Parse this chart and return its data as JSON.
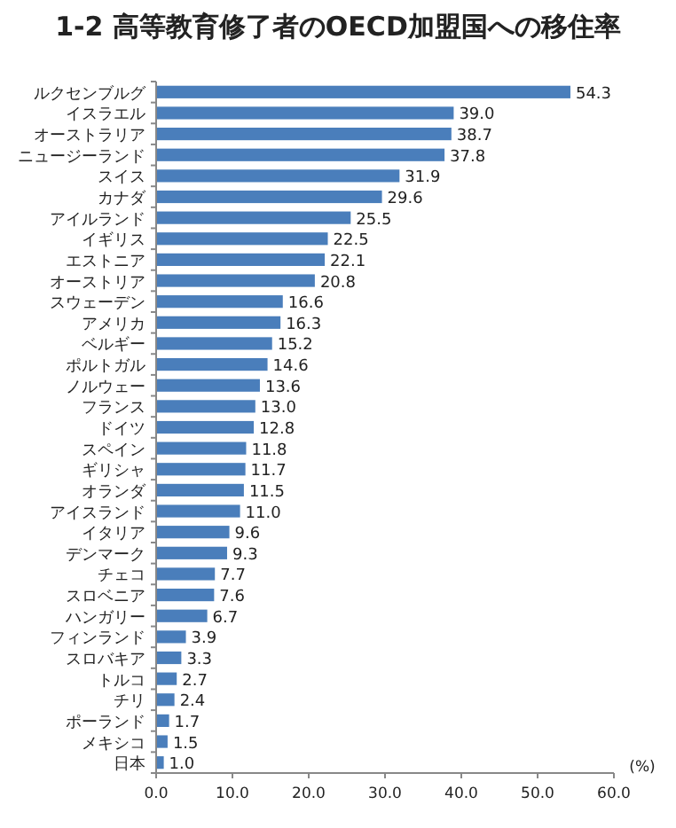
{
  "chart_data": {
    "type": "bar",
    "orientation": "horizontal",
    "title": "1-2 高等教育修了者のOECD加盟国への移住率",
    "xlabel": "(%)",
    "categories": [
      "ルクセンブルグ",
      "イスラエル",
      "オーストラリア",
      "ニュージーランド",
      "スイス",
      "カナダ",
      "アイルランド",
      "イギリス",
      "エストニア",
      "オーストリア",
      "スウェーデン",
      "アメリカ",
      "ベルギー",
      "ポルトガル",
      "ノルウェー",
      "フランス",
      "ドイツ",
      "スペイン",
      "ギリシャ",
      "オランダ",
      "アイスランド",
      "イタリア",
      "デンマーク",
      "チェコ",
      "スロベニア",
      "ハンガリー",
      "フィンランド",
      "スロバキア",
      "トルコ",
      "チリ",
      "ポーランド",
      "メキシコ",
      "日本"
    ],
    "values": [
      54.3,
      39.0,
      38.7,
      37.8,
      31.9,
      29.6,
      25.5,
      22.5,
      22.1,
      20.8,
      16.6,
      16.3,
      15.2,
      14.6,
      13.6,
      13.0,
      12.8,
      11.8,
      11.7,
      11.5,
      11.0,
      9.6,
      9.3,
      7.7,
      7.6,
      6.7,
      3.9,
      3.3,
      2.7,
      2.4,
      1.7,
      1.5,
      1.0
    ],
    "value_labels": [
      "54.3",
      "39.0",
      "38.7",
      "37.8",
      "31.9",
      "29.6",
      "25.5",
      "22.5",
      "22.1",
      "20.8",
      "16.6",
      "16.3",
      "15.2",
      "14.6",
      "13.6",
      "13.0",
      "12.8",
      "11.8",
      "11.7",
      "11.5",
      "11.0",
      "9.6",
      "9.3",
      "7.7",
      "7.6",
      "6.7",
      "3.9",
      "3.3",
      "2.7",
      "2.4",
      "1.7",
      "1.5",
      "1.0"
    ],
    "color": "#4a7ebb",
    "xlim": [
      0,
      60
    ],
    "xticks": [
      {
        "value": 0,
        "label": "0.0"
      },
      {
        "value": 10,
        "label": "10.0"
      },
      {
        "value": 20,
        "label": "20.0"
      },
      {
        "value": 30,
        "label": "30.0"
      },
      {
        "value": 40,
        "label": "40.0"
      },
      {
        "value": 50,
        "label": "50.0"
      },
      {
        "value": 60,
        "label": "60.0"
      }
    ],
    "grid": false
  }
}
